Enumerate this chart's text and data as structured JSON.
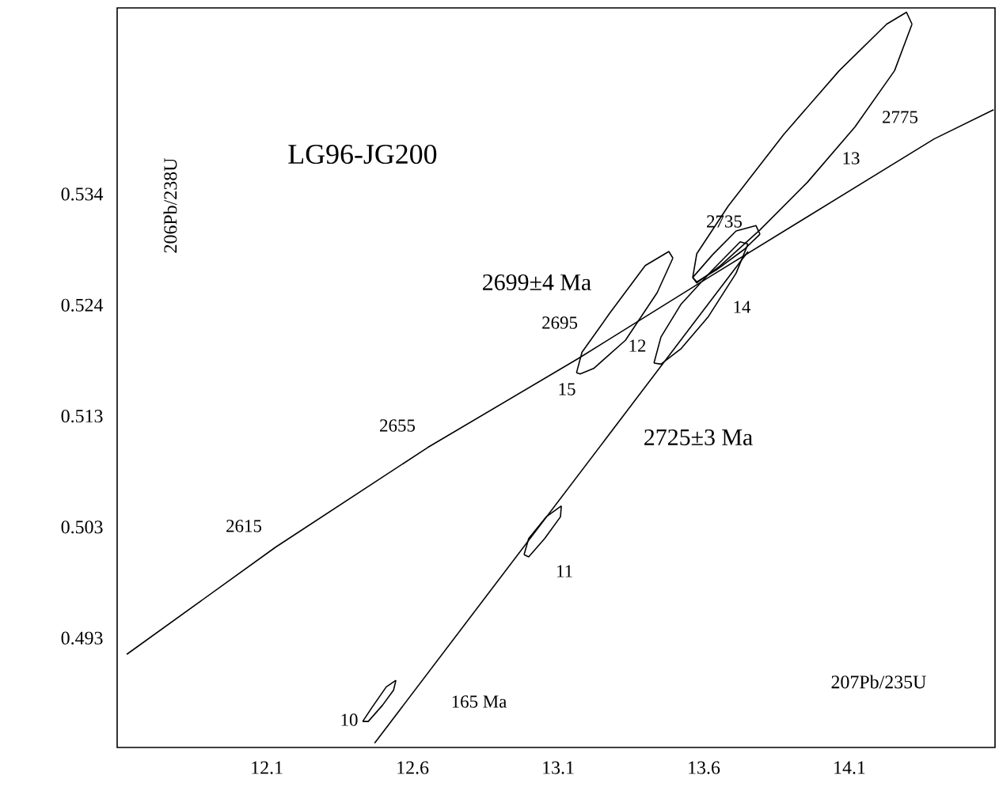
{
  "chart_data": {
    "type": "line",
    "title": "LG96-JG200",
    "xlabel": "207Pb/235U",
    "ylabel": "206Pb/238U",
    "xlim": [
      11.586,
      14.6
    ],
    "ylim": [
      0.4829,
      0.5512
    ],
    "xticks": [
      12.1,
      12.6,
      13.1,
      13.6,
      14.1
    ],
    "yticks": [
      {
        "value": 0.493,
        "label": "0.493"
      },
      {
        "value": 0.50325,
        "label": "0.503"
      },
      {
        "value": 0.5135,
        "label": "0.513"
      },
      {
        "value": 0.52375,
        "label": "0.524"
      },
      {
        "value": 0.534,
        "label": "0.534"
      }
    ],
    "grid": false,
    "series": [
      {
        "color": "#000000",
        "x": [
          11.619,
          12.13,
          12.652,
          13.168,
          13.616,
          14.391,
          14.595
        ],
        "values": [
          0.4915,
          0.5014,
          0.5106,
          0.5188,
          0.5263,
          0.5391,
          0.5418
        ]
      },
      {
        "color": "#000000",
        "x": [
          12.47,
          13.752
        ],
        "values": [
          0.4833,
          0.5287
        ]
      },
      {
        "color": "#000000",
        "x": [
          12.429,
          12.461,
          12.51,
          12.543
        ],
        "values": [
          0.4853,
          0.4866,
          0.4885,
          0.4891
        ]
      },
      {
        "color": "#000000",
        "x": [
          12.429,
          12.448,
          12.497,
          12.535,
          12.543
        ],
        "values": [
          0.4853,
          0.4853,
          0.4868,
          0.4882,
          0.4891
        ]
      },
      {
        "color": "#000000",
        "x": [
          12.983,
          12.999,
          13.059,
          13.111
        ],
        "values": [
          0.5007,
          0.5022,
          0.5042,
          0.5052
        ]
      },
      {
        "color": "#000000",
        "x": [
          12.983,
          12.999,
          13.054,
          13.108,
          13.111
        ],
        "values": [
          0.5007,
          0.5005,
          0.5022,
          0.5042,
          0.5052
        ]
      },
      {
        "color": "#000000",
        "x": [
          13.163,
          13.182,
          13.277,
          13.399,
          13.48,
          13.494
        ],
        "values": [
          0.5175,
          0.5194,
          0.523,
          0.5274,
          0.5287,
          0.5281
        ]
      },
      {
        "color": "#000000",
        "x": [
          13.163,
          13.176,
          13.222,
          13.331,
          13.44,
          13.494
        ],
        "values": [
          0.5175,
          0.5174,
          0.5179,
          0.5205,
          0.5249,
          0.5281
        ]
      },
      {
        "color": "#000000",
        "x": [
          13.429,
          13.453,
          13.521,
          13.63,
          13.725,
          13.752
        ],
        "values": [
          0.5184,
          0.5208,
          0.5238,
          0.527,
          0.5296,
          0.5294
        ]
      },
      {
        "color": "#000000",
        "x": [
          13.429,
          13.453,
          13.521,
          13.616,
          13.711,
          13.752
        ],
        "values": [
          0.5184,
          0.5183,
          0.5197,
          0.5227,
          0.5267,
          0.5294
        ]
      },
      {
        "color": "#000000",
        "x": [
          13.562,
          13.63,
          13.711,
          13.779,
          13.793
        ],
        "values": [
          0.5263,
          0.5284,
          0.5306,
          0.5311,
          0.5303
        ]
      },
      {
        "color": "#000000",
        "x": [
          13.562,
          13.576,
          13.643,
          13.739,
          13.793
        ],
        "values": [
          0.5263,
          0.5259,
          0.527,
          0.5289,
          0.5303
        ]
      },
      {
        "color": "#000000",
        "x": [
          13.562,
          13.576,
          13.684,
          13.874,
          14.065,
          14.228,
          14.296,
          14.315
        ],
        "values": [
          0.5263,
          0.5285,
          0.5329,
          0.5395,
          0.5454,
          0.5497,
          0.5508,
          0.5497
        ]
      },
      {
        "color": "#000000",
        "x": [
          13.562,
          13.576,
          13.657,
          13.793,
          13.956,
          14.119,
          14.255,
          14.315
        ],
        "values": [
          0.5263,
          0.5258,
          0.5274,
          0.5307,
          0.5351,
          0.5402,
          0.5454,
          0.5497
        ]
      }
    ],
    "annotations": [
      "2699±4 Ma",
      "2725±3 Ma",
      "165 Ma",
      "2615",
      "2655",
      "2695",
      "2735",
      "2775",
      "10",
      "11",
      "12",
      "13",
      "14",
      "15"
    ]
  }
}
